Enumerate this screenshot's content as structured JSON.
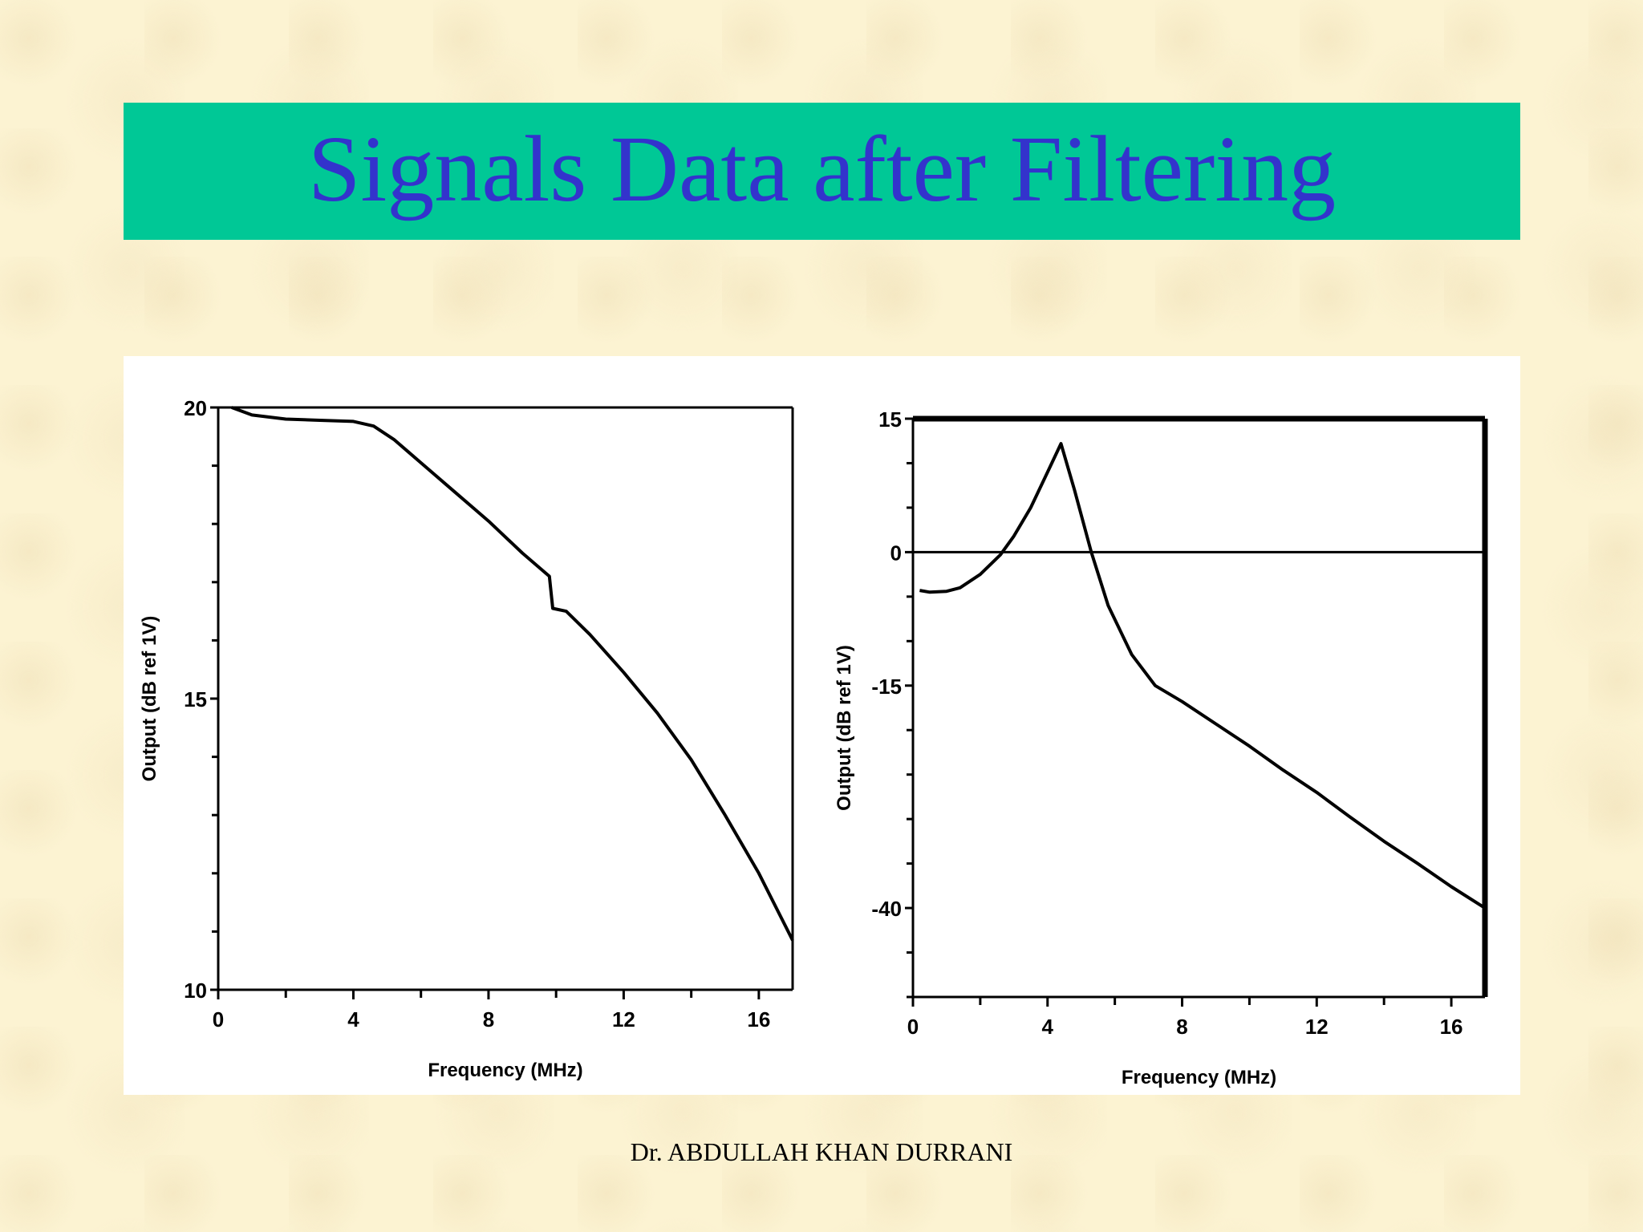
{
  "slide": {
    "title": "Signals Data after Filtering",
    "footer": "Dr. ABDULLAH KHAN DURRANI",
    "colors": {
      "title_bar": "#00c896",
      "title_text": "#3333cc",
      "background": "#fcf3d2"
    }
  },
  "chart_data": [
    {
      "type": "line",
      "title": "",
      "xlabel": "Frequency (MHz)",
      "ylabel": "Output (dB ref 1V)",
      "xlim": [
        0,
        17
      ],
      "ylim": [
        10,
        20
      ],
      "x_tick_labels": [
        "0",
        "4",
        "8",
        "12",
        "16"
      ],
      "x_tick_values": [
        0,
        4,
        8,
        12,
        16
      ],
      "x_minor_ticks": [
        2,
        6,
        10,
        14
      ],
      "y_tick_labels": [
        "20",
        "15",
        "10"
      ],
      "y_tick_values": [
        20,
        15,
        10
      ],
      "y_minor_ticks": [
        11,
        12,
        13,
        14,
        16,
        17,
        18,
        19
      ],
      "grid": false,
      "legend": "none",
      "series": [
        {
          "x": [
            0.4,
            1.0,
            2.0,
            3.0,
            4.0,
            4.6,
            5.2,
            6.0,
            7.0,
            8.0,
            9.0,
            9.8,
            9.9,
            10.3,
            11.0,
            12.0,
            13.0,
            14.0,
            15.0,
            16.0,
            17.0
          ],
          "y": [
            20.0,
            19.87,
            19.8,
            19.78,
            19.76,
            19.68,
            19.45,
            19.05,
            18.55,
            18.05,
            17.5,
            17.1,
            16.55,
            16.5,
            16.1,
            15.45,
            14.75,
            13.95,
            13.0,
            12.0,
            10.85
          ]
        }
      ]
    },
    {
      "type": "line",
      "title": "",
      "xlabel": "Frequency (MHz)",
      "ylabel": "Output (dB ref 1V)",
      "xlim": [
        0,
        17
      ],
      "ylim": [
        -50,
        15
      ],
      "x_tick_labels": [
        "0",
        "4",
        "8",
        "12",
        "16"
      ],
      "x_tick_values": [
        0,
        4,
        8,
        12,
        16
      ],
      "x_minor_ticks": [
        2,
        6,
        10,
        14
      ],
      "y_tick_labels": [
        "15",
        "0",
        "-15",
        "-40"
      ],
      "y_tick_values": [
        15,
        0,
        -15,
        -40
      ],
      "y_minor_ticks": [
        10,
        5,
        -5,
        -10,
        -20,
        -25,
        -30,
        -35,
        -45,
        -50
      ],
      "reference_line_y": 0,
      "grid": false,
      "legend": "none",
      "series": [
        {
          "x": [
            0.2,
            0.5,
            1.0,
            1.4,
            2.0,
            2.6,
            3.0,
            3.5,
            4.0,
            4.4,
            4.8,
            5.3,
            5.8,
            6.5,
            7.2,
            8.0,
            9.0,
            10.0,
            11.0,
            12.0,
            13.0,
            14.0,
            15.0,
            16.0,
            17.0
          ],
          "y": [
            -4.3,
            -4.5,
            -4.4,
            -4.0,
            -2.5,
            -0.3,
            1.8,
            5.0,
            9.0,
            12.2,
            7.0,
            0.0,
            -6.0,
            -11.5,
            -15.0,
            -16.8,
            -19.3,
            -21.8,
            -24.5,
            -27.0,
            -29.8,
            -32.5,
            -35.0,
            -37.6,
            -40.0
          ]
        }
      ]
    }
  ]
}
